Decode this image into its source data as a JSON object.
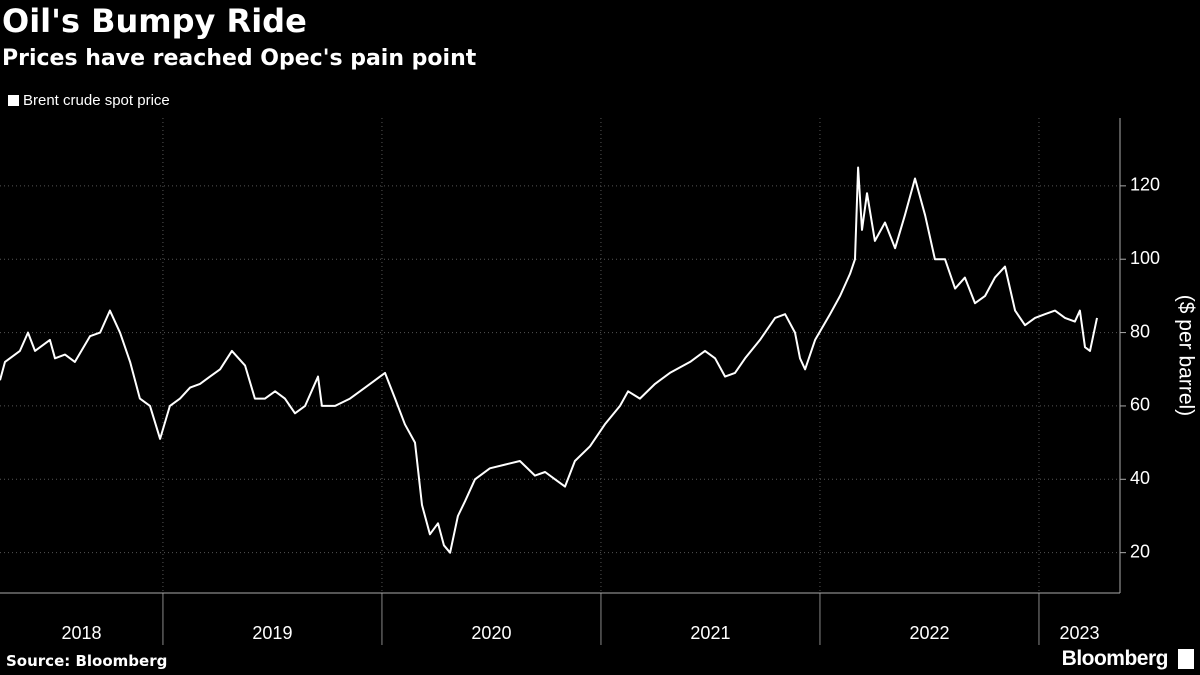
{
  "chart_data": {
    "type": "line",
    "title": "Oil's Bumpy Ride",
    "subtitle": "Prices have reached Opec's pain point",
    "y_label": "($ per barrel)",
    "source": "Source: Bloomberg",
    "brand": "Bloomberg",
    "legend": "top-left",
    "grid": true,
    "x": [
      2018.256,
      2018.279,
      2018.347,
      2018.384,
      2018.416,
      2018.484,
      2018.507,
      2018.553,
      2018.598,
      2018.667,
      2018.713,
      2018.758,
      2018.804,
      2018.85,
      2018.895,
      2018.941,
      2018.987,
      2019.032,
      2019.078,
      2019.124,
      2019.169,
      2019.215,
      2019.261,
      2019.315,
      2019.375,
      2019.42,
      2019.466,
      2019.512,
      2019.557,
      2019.603,
      2019.649,
      2019.708,
      2019.726,
      2019.786,
      2019.854,
      2019.923,
      2019.991,
      2020.014,
      2020.06,
      2020.105,
      2020.151,
      2020.183,
      2020.219,
      2020.256,
      2020.283,
      2020.311,
      2020.347,
      2020.379,
      2020.425,
      2020.493,
      2020.562,
      2020.63,
      2020.699,
      2020.745,
      2020.79,
      2020.836,
      2020.881,
      2020.95,
      2021.018,
      2021.087,
      2021.124,
      2021.178,
      2021.247,
      2021.315,
      2021.407,
      2021.475,
      2021.521,
      2021.567,
      2021.612,
      2021.658,
      2021.726,
      2021.795,
      2021.841,
      2021.886,
      2021.909,
      2021.932,
      2021.978,
      2022.046,
      2022.092,
      2022.137,
      2022.16,
      2022.174,
      2022.192,
      2022.215,
      2022.251,
      2022.297,
      2022.343,
      2022.388,
      2022.434,
      2022.48,
      2022.525,
      2022.571,
      2022.617,
      2022.662,
      2022.708,
      2022.754,
      2022.799,
      2022.845,
      2022.891,
      2022.936,
      2022.982,
      2023.027,
      2023.073,
      2023.119,
      2023.164,
      2023.187,
      2023.21,
      2023.233,
      2023.265
    ],
    "series": [
      {
        "name": "Brent crude spot price",
        "color": "#ffffff",
        "values": [
          67,
          72,
          75,
          80,
          75,
          78,
          73,
          74,
          72,
          79,
          80,
          86,
          80,
          72,
          62,
          60,
          51,
          60,
          62,
          65,
          66,
          68,
          70,
          75,
          71,
          62,
          62,
          64,
          62,
          58,
          60,
          68,
          60,
          60,
          62,
          65,
          68,
          69,
          62,
          55,
          50,
          33,
          25,
          28,
          22,
          20,
          30,
          34,
          40,
          43,
          44,
          45,
          41,
          42,
          40,
          38,
          45,
          49,
          55,
          60,
          64,
          62,
          66,
          69,
          72,
          75,
          73,
          68,
          69,
          73,
          78,
          84,
          85,
          80,
          73,
          70,
          78,
          85,
          90,
          96,
          100,
          125,
          108,
          118,
          105,
          110,
          103,
          112,
          122,
          112,
          100,
          100,
          92,
          95,
          88,
          90,
          95,
          98,
          86,
          82,
          84,
          85,
          86,
          84,
          83,
          86,
          76,
          75,
          84
        ]
      }
    ],
    "xlim": [
      2018.256,
      2023.37
    ],
    "xticks": [
      2018,
      2019,
      2020,
      2021,
      2022,
      2023
    ],
    "ylim": [
      9,
      138.5
    ],
    "yticks": [
      20,
      40,
      60,
      80,
      100,
      120
    ]
  }
}
